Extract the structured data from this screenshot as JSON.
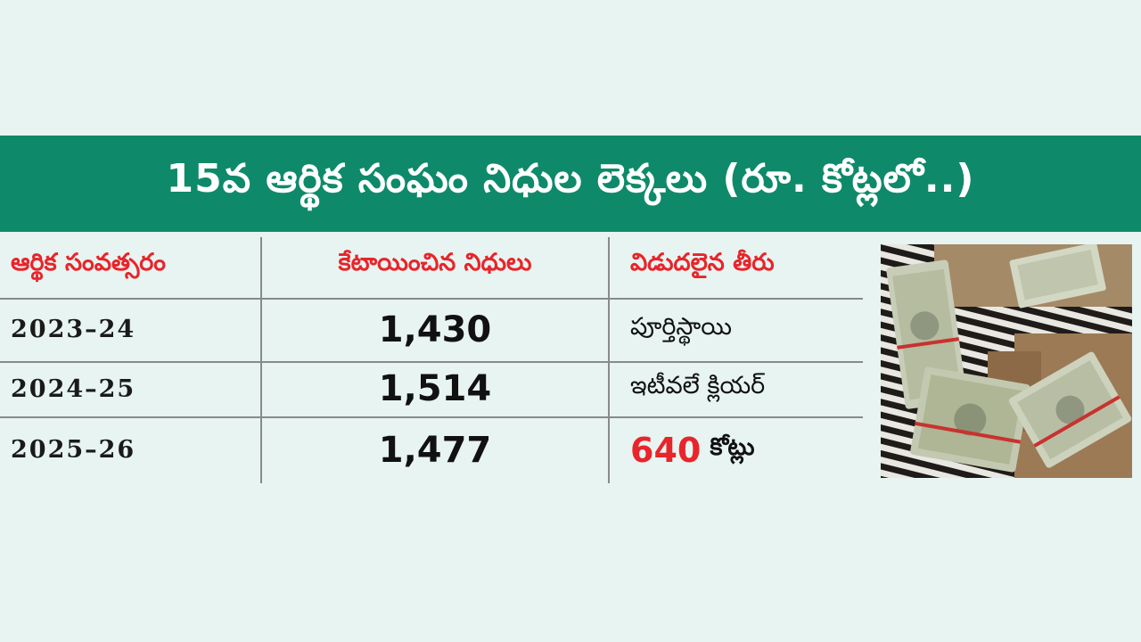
{
  "chart_data": {
    "type": "table",
    "title": "15వ ఆర్థిక సంఘం నిధుల లెక్కలు (రూ. కోట్లలో..)",
    "columns": [
      "ఆర్థిక సంవత్సరం",
      "కేటాయించిన నిధులు",
      "విడుదలైన తీరు"
    ],
    "rows": [
      {
        "year": "2023–24",
        "allocated": "1,430",
        "status": "పూర్తిస్థాయి"
      },
      {
        "year": "2024–25",
        "allocated": "1,514",
        "status": "ఇటీవలే క్లియర్"
      },
      {
        "year": "2025–26",
        "allocated": "1,477",
        "status_value": "640",
        "status_unit": "కోట్లు"
      }
    ]
  },
  "colors": {
    "title_background": "#0e8a6a",
    "header_text": "#e8252b",
    "page_background": "#e7f4f1"
  }
}
